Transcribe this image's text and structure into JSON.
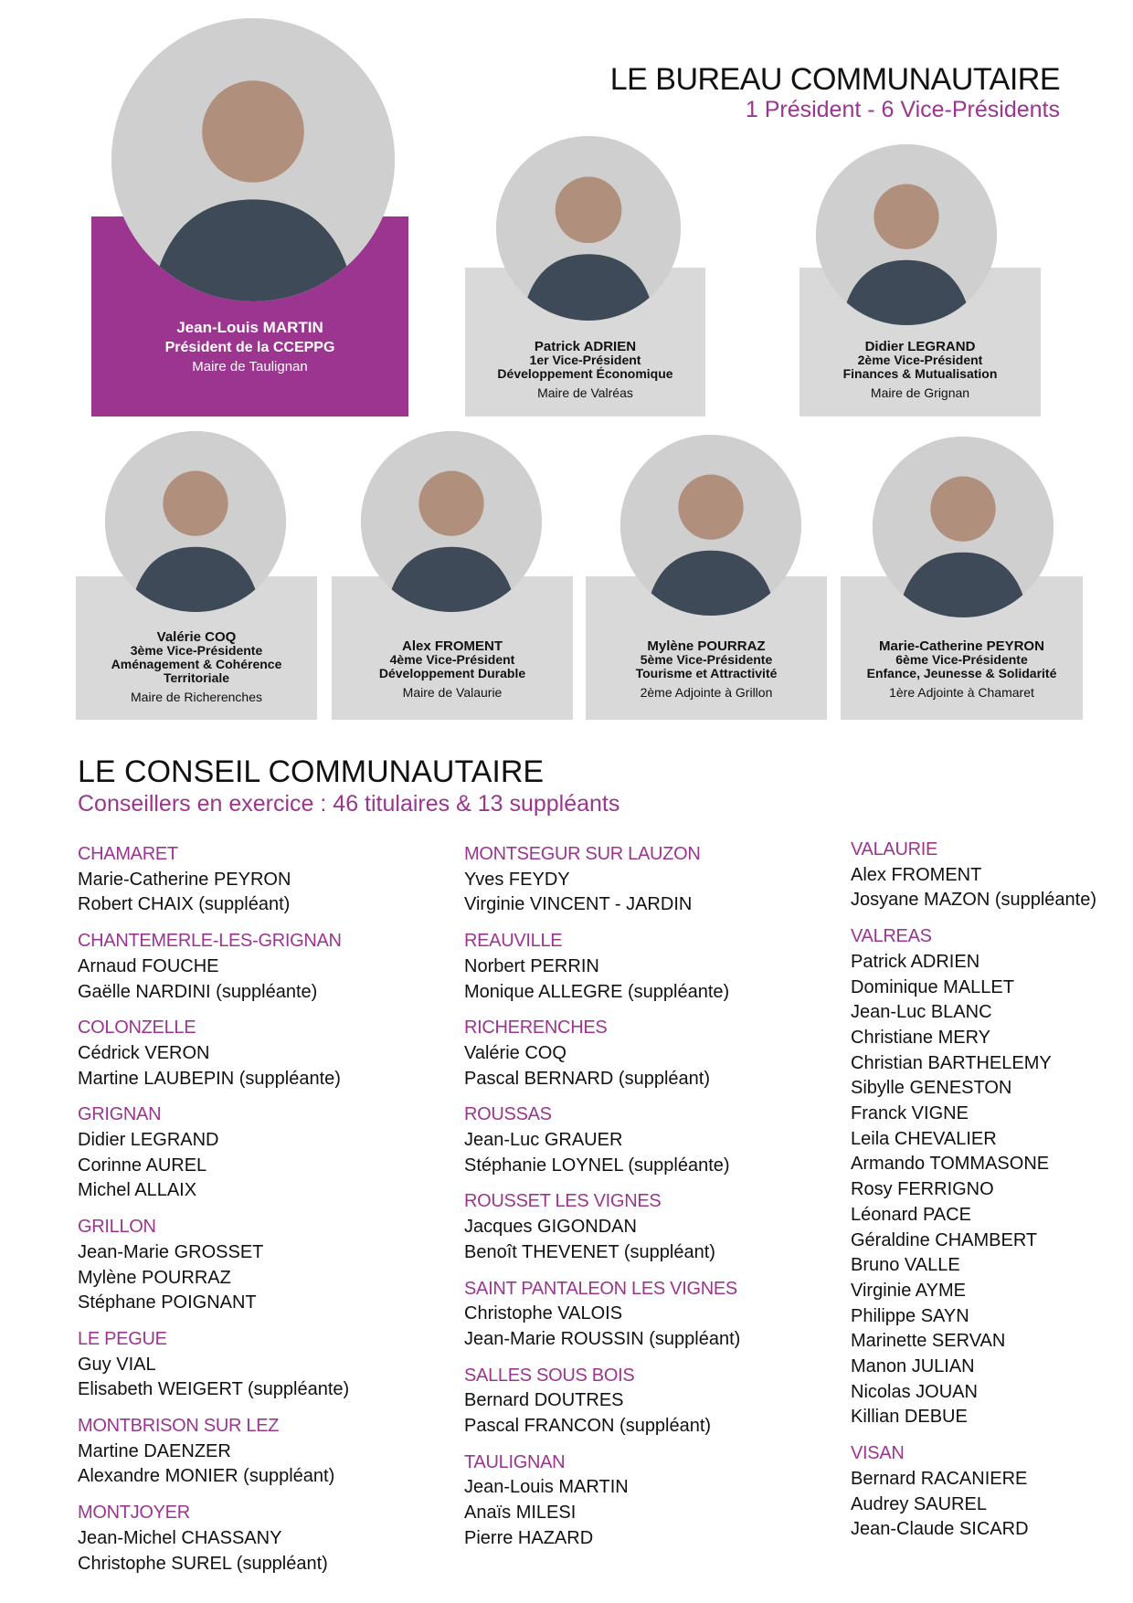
{
  "bureau": {
    "title": "LE BUREAU COMMUNAUTAIRE",
    "subtitle": "1 Président - 6 Vice-Présidents",
    "members": [
      {
        "name": "Jean-Louis MARTIN",
        "role": "Président de la CCEPPG",
        "domain": "",
        "mandate": "Maire de Taulignan"
      },
      {
        "name": "Patrick ADRIEN",
        "role": "1er Vice-Président",
        "domain": "Développement Économique",
        "mandate": "Maire de Valréas"
      },
      {
        "name": "Didier LEGRAND",
        "role": "2ème Vice-Président",
        "domain": "Finances & Mutualisation",
        "mandate": "Maire de Grignan"
      },
      {
        "name": "Valérie COQ",
        "role": "3ème Vice-Présidente",
        "domain": "Aménagement & Cohérence Territoriale",
        "mandate": "Maire de Richerenches"
      },
      {
        "name": "Alex FROMENT",
        "role": "4ème Vice-Président",
        "domain": "Développement Durable",
        "mandate": "Maire de Valaurie"
      },
      {
        "name": "Mylène POURRAZ",
        "role": "5ème Vice-Présidente",
        "domain": "Tourisme et Attractivité",
        "mandate": "2ème Adjointe à Grillon"
      },
      {
        "name": "Marie-Catherine PEYRON",
        "role": "6ème Vice-Présidente",
        "domain": "Enfance, Jeunesse & Solidarité",
        "mandate": "1ère Adjointe à Chamaret"
      }
    ]
  },
  "conseil": {
    "title": "LE CONSEIL COMMUNAUTAIRE",
    "subtitle": "Conseillers en exercice : 46 titulaires & 13 suppléants",
    "columns": [
      [
        {
          "commune": "CHAMARET",
          "members": [
            "Marie-Catherine PEYRON",
            "Robert CHAIX (suppléant)"
          ]
        },
        {
          "commune": "CHANTEMERLE-LES-GRIGNAN",
          "members": [
            "Arnaud FOUCHE",
            "Gaëlle NARDINI (suppléante)"
          ]
        },
        {
          "commune": "COLONZELLE",
          "members": [
            "Cédrick VERON",
            "Martine LAUBEPIN (suppléante)"
          ]
        },
        {
          "commune": "GRIGNAN",
          "members": [
            "Didier LEGRAND",
            "Corinne AUREL",
            "Michel ALLAIX"
          ]
        },
        {
          "commune": "GRILLON",
          "members": [
            "Jean-Marie GROSSET",
            "Mylène POURRAZ",
            "Stéphane POIGNANT"
          ]
        },
        {
          "commune": "LE PEGUE",
          "members": [
            "Guy VIAL",
            "Elisabeth WEIGERT (suppléante)"
          ]
        },
        {
          "commune": "MONTBRISON SUR LEZ",
          "members": [
            "Martine DAENZER",
            "Alexandre MONIER (suppléant)"
          ]
        },
        {
          "commune": "MONTJOYER",
          "members": [
            "Jean-Michel CHASSANY",
            "Christophe SUREL (suppléant)"
          ]
        }
      ],
      [
        {
          "commune": "MONTSEGUR SUR LAUZON",
          "members": [
            "Yves FEYDY",
            "Virginie VINCENT - JARDIN"
          ]
        },
        {
          "commune": "REAUVILLE",
          "members": [
            "Norbert PERRIN",
            "Monique ALLEGRE (suppléante)"
          ]
        },
        {
          "commune": "RICHERENCHES",
          "members": [
            "Valérie COQ",
            "Pascal BERNARD (suppléant)"
          ]
        },
        {
          "commune": "ROUSSAS",
          "members": [
            "Jean-Luc GRAUER",
            "Stéphanie LOYNEL (suppléante)"
          ]
        },
        {
          "commune": "ROUSSET LES VIGNES",
          "members": [
            "Jacques GIGONDAN",
            "Benoît THEVENET (suppléant)"
          ]
        },
        {
          "commune": "SAINT PANTALEON LES VIGNES",
          "members": [
            "Christophe VALOIS",
            "Jean-Marie ROUSSIN (suppléant)"
          ]
        },
        {
          "commune": "SALLES SOUS BOIS",
          "members": [
            "Bernard DOUTRES",
            "Pascal FRANCON (suppléant)"
          ]
        },
        {
          "commune": "TAULIGNAN",
          "members": [
            "Jean-Louis MARTIN",
            "Anaïs MILESI",
            "Pierre HAZARD"
          ]
        }
      ],
      [
        {
          "commune": "VALAURIE",
          "members": [
            "Alex FROMENT",
            "Josyane MAZON (suppléante)"
          ]
        },
        {
          "commune": "VALREAS",
          "members": [
            "Patrick  ADRIEN",
            "Dominique MALLET",
            "Jean-Luc BLANC",
            "Christiane MERY",
            "Christian BARTHELEMY",
            "Sibylle GENESTON",
            "Franck VIGNE",
            "Leila CHEVALIER",
            "Armando TOMMASONE",
            "Rosy FERRIGNO",
            "Léonard PACE",
            "Géraldine CHAMBERT",
            "Bruno VALLE",
            "Virginie AYME",
            "Philippe SAYN",
            "Marinette SERVAN",
            "Manon JULIAN",
            "Nicolas JOUAN",
            "Killian DEBUE"
          ]
        },
        {
          "commune": "VISAN",
          "members": [
            "Bernard RACANIERE",
            "Audrey SAUREL",
            "Jean-Claude SICARD"
          ]
        }
      ]
    ]
  },
  "colors": {
    "accent": "#9b3590",
    "card": "#d9d9d9"
  }
}
